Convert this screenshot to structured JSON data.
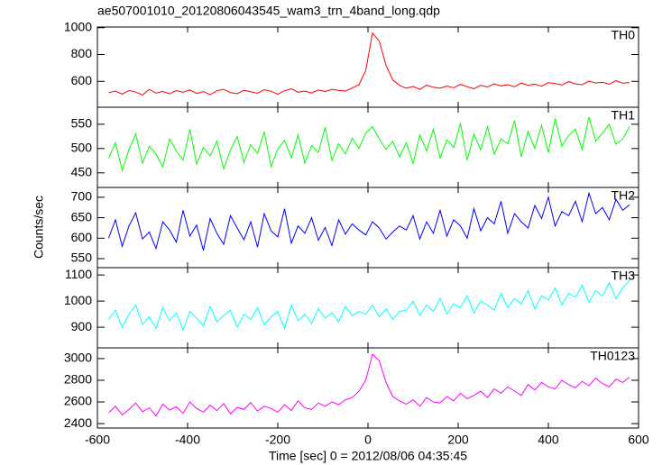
{
  "chart_data": {
    "type": "line",
    "title": "ae507001010_20120806043545_wam3_trn_4band_long.qdp",
    "xlabel": "Time [sec] 0 = 2012/08/06 04:35:45",
    "ylabel": "Counts/sec",
    "xlim": [
      -600,
      600
    ],
    "xticks": [
      -600,
      -400,
      -200,
      0,
      200,
      400,
      600
    ],
    "x": [
      -575,
      -560,
      -545,
      -530,
      -515,
      -500,
      -485,
      -470,
      -455,
      -440,
      -425,
      -410,
      -395,
      -380,
      -365,
      -350,
      -335,
      -320,
      -305,
      -290,
      -275,
      -260,
      -245,
      -230,
      -215,
      -200,
      -185,
      -170,
      -155,
      -140,
      -125,
      -110,
      -95,
      -80,
      -65,
      -50,
      -35,
      -20,
      -5,
      10,
      25,
      40,
      55,
      70,
      85,
      100,
      115,
      130,
      145,
      160,
      175,
      190,
      205,
      220,
      235,
      250,
      265,
      280,
      295,
      310,
      325,
      340,
      355,
      370,
      385,
      400,
      415,
      430,
      445,
      460,
      475,
      490,
      505,
      520,
      535,
      550,
      565,
      580
    ],
    "series": [
      {
        "name": "TH0",
        "color": "#ff0000",
        "ylim": [
          407,
          1005
        ],
        "yticks": [
          600,
          800,
          1000
        ],
        "values": [
          515,
          528,
          505,
          532,
          520,
          498,
          540,
          512,
          525,
          507,
          531,
          519,
          536,
          510,
          524,
          502,
          529,
          541,
          516,
          508,
          533,
          522,
          511,
          538,
          526,
          504,
          530,
          545,
          519,
          528,
          513,
          536,
          524,
          541,
          532,
          528,
          550,
          575,
          680,
          960,
          900,
          720,
          610,
          570,
          548,
          562,
          540,
          571,
          556,
          549,
          565,
          552,
          578,
          560,
          545,
          570,
          558,
          582,
          566,
          575,
          560,
          588,
          571,
          579,
          564,
          590,
          583,
          572,
          598,
          581,
          575,
          602,
          588,
          593,
          579,
          605,
          586,
          592
        ]
      },
      {
        "name": "TH1",
        "color": "#00ff00",
        "ylim": [
          420,
          585
        ],
        "yticks": [
          450,
          500,
          550
        ],
        "values": [
          480,
          512,
          455,
          498,
          530,
          470,
          505,
          488,
          462,
          520,
          495,
          476,
          540,
          468,
          502,
          485,
          515,
          458,
          497,
          525,
          472,
          508,
          490,
          535,
          463,
          499,
          517,
          481,
          528,
          470,
          506,
          492,
          544,
          476,
          510,
          489,
          521,
          500,
          532,
          545,
          520,
          498,
          515,
          483,
          512,
          470,
          528,
          495,
          540,
          481,
          518,
          502,
          552,
          476,
          530,
          497,
          545,
          488,
          520,
          510,
          558,
          483,
          535,
          500,
          548,
          492,
          562,
          505,
          527,
          540,
          498,
          565,
          515,
          532,
          550,
          509,
          520,
          545
        ]
      },
      {
        "name": "TH2",
        "color": "#0000ff",
        "ylim": [
          528,
          724
        ],
        "yticks": [
          550,
          600,
          650,
          700
        ],
        "values": [
          600,
          645,
          580,
          630,
          662,
          598,
          615,
          575,
          640,
          620,
          590,
          668,
          605,
          632,
          570,
          648,
          612,
          585,
          655,
          625,
          596,
          640,
          578,
          660,
          618,
          603,
          672,
          588,
          630,
          612,
          650,
          595,
          626,
          582,
          645,
          610,
          635,
          620,
          608,
          640,
          625,
          598,
          615,
          630,
          620,
          655,
          598,
          640,
          612,
          668,
          605,
          645,
          630,
          600,
          672,
          618,
          650,
          635,
          690,
          612,
          660,
          640,
          625,
          680,
          648,
          700,
          630,
          665,
          655,
          690,
          640,
          710,
          660,
          675,
          645,
          695,
          668,
          682
        ]
      },
      {
        "name": "TH3",
        "color": "#00ffff",
        "ylim": [
          821,
          1128
        ],
        "yticks": [
          900,
          1000,
          1100
        ],
        "values": [
          930,
          965,
          900,
          950,
          985,
          910,
          940,
          895,
          975,
          925,
          955,
          890,
          960,
          935,
          905,
          980,
          920,
          945,
          965,
          900,
          950,
          930,
          975,
          910,
          940,
          960,
          895,
          985,
          925,
          950,
          915,
          970,
          935,
          955,
          920,
          980,
          945,
          960,
          950,
          985,
          940,
          970,
          930,
          960,
          965,
          1000,
          945,
          985,
          960,
          1010,
          950,
          990,
          975,
          1020,
          955,
          1000,
          985,
          965,
          1030,
          975,
          1010,
          990,
          1040,
          970,
          1020,
          1005,
          1050,
          985,
          1030,
          1015,
          1060,
          995,
          1040,
          1020,
          1070,
          1010,
          1050,
          1080
        ]
      },
      {
        "name": "TH0123",
        "color": "#ff00ff",
        "ylim": [
          2359,
          3099
        ],
        "yticks": [
          2400,
          2600,
          2800,
          3000
        ],
        "values": [
          2500,
          2560,
          2480,
          2530,
          2590,
          2510,
          2545,
          2470,
          2580,
          2525,
          2555,
          2495,
          2600,
          2540,
          2505,
          2570,
          2520,
          2585,
          2490,
          2550,
          2530,
          2595,
          2515,
          2560,
          2540,
          2505,
          2575,
          2520,
          2610,
          2545,
          2530,
          2590,
          2560,
          2600,
          2575,
          2620,
          2640,
          2700,
          2800,
          3040,
          2980,
          2780,
          2650,
          2610,
          2580,
          2620,
          2560,
          2640,
          2600,
          2590,
          2650,
          2610,
          2680,
          2630,
          2660,
          2700,
          2640,
          2720,
          2680,
          2740,
          2700,
          2660,
          2760,
          2710,
          2780,
          2740,
          2720,
          2800,
          2760,
          2730,
          2790,
          2750,
          2820,
          2770,
          2740,
          2810,
          2780,
          2830
        ]
      }
    ]
  }
}
